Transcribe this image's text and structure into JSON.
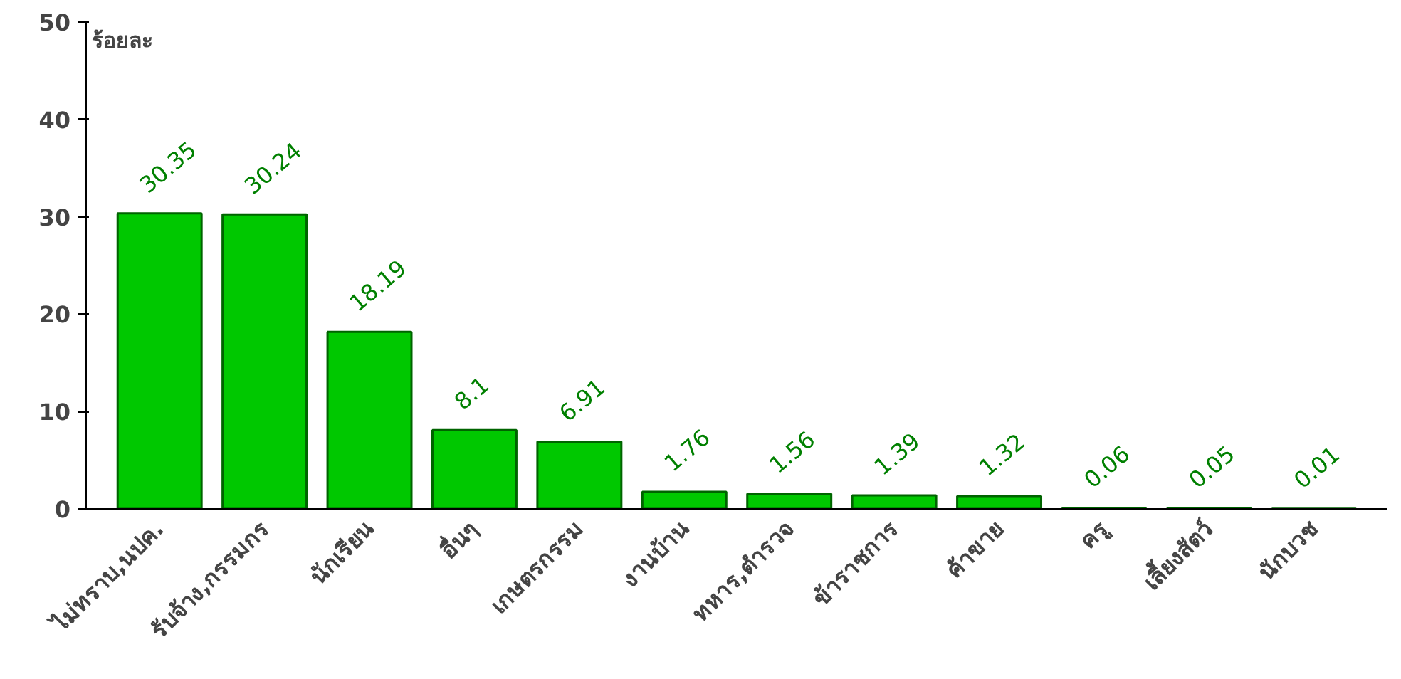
{
  "chart_data": {
    "type": "bar",
    "ylabel": "ร้อยละ",
    "categories": [
      "ไม่ทราบ,นปค.",
      "รับจ้าง,กรรมกร",
      "นักเรียน",
      "อื่นๆ",
      "เกษตรกรรม",
      "งานบ้าน",
      "ทหาร,ตำรวจ",
      "ข้าราชการ",
      "ค้าขาย",
      "ครู",
      "เลี้ยงสัตว์",
      "นักบวช"
    ],
    "values": [
      30.35,
      30.24,
      18.19,
      8.1,
      6.91,
      1.76,
      1.56,
      1.39,
      1.32,
      0.06,
      0.05,
      0.01
    ],
    "color": "#00c800",
    "ylim": [
      0,
      50
    ],
    "yticks": [
      0,
      10,
      20,
      30,
      40,
      50
    ],
    "grid": false,
    "data_labels": true
  }
}
